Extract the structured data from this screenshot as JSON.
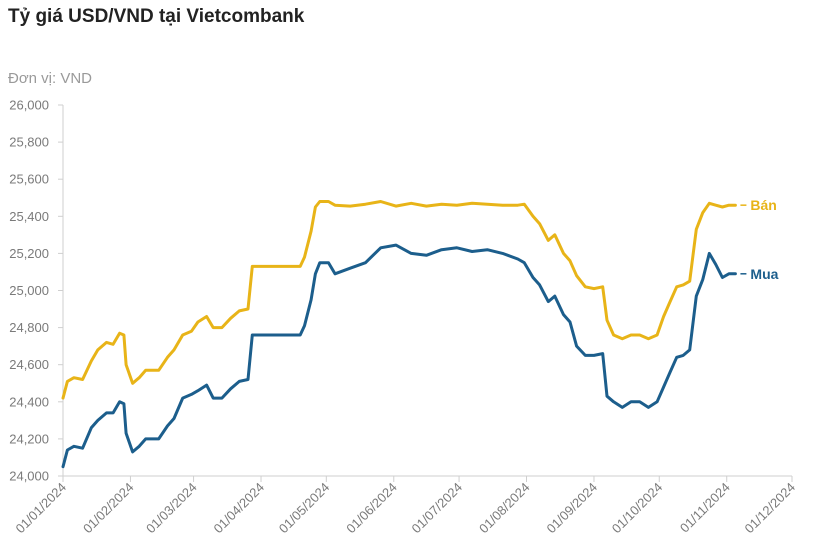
{
  "chart_data": {
    "type": "line",
    "title": "Tỷ giá USD/VND tại Vietcombank",
    "subtitle": "Đơn vị: VND",
    "ylim": [
      24000,
      26000
    ],
    "y_ticks": [
      24000,
      24200,
      24400,
      24600,
      24800,
      25000,
      25200,
      25400,
      25600,
      25800,
      26000
    ],
    "y_tick_labels": [
      "24,000",
      "24,200",
      "24,400",
      "24,600",
      "24,800",
      "25,000",
      "25,200",
      "25,400",
      "25,600",
      "25,800",
      "26,000"
    ],
    "x_tick_labels": [
      "01/01/2024",
      "01/02/2024",
      "01/03/2024",
      "01/04/2024",
      "01/05/2024",
      "01/06/2024",
      "01/07/2024",
      "01/08/2024",
      "01/09/2024",
      "01/10/2024",
      "01/11/2024",
      "01/12/2024"
    ],
    "grid": false,
    "series": [
      {
        "name": "Bán",
        "color": "#E8B418",
        "points": [
          [
            "01/01/2024",
            24420
          ],
          [
            "03/01/2024",
            24510
          ],
          [
            "06/01/2024",
            24530
          ],
          [
            "10/01/2024",
            24520
          ],
          [
            "14/01/2024",
            24620
          ],
          [
            "17/01/2024",
            24680
          ],
          [
            "21/01/2024",
            24720
          ],
          [
            "24/01/2024",
            24710
          ],
          [
            "27/01/2024",
            24770
          ],
          [
            "29/01/2024",
            24760
          ],
          [
            "30/01/2024",
            24600
          ],
          [
            "02/02/2024",
            24500
          ],
          [
            "05/02/2024",
            24530
          ],
          [
            "08/02/2024",
            24570
          ],
          [
            "14/02/2024",
            24570
          ],
          [
            "18/02/2024",
            24640
          ],
          [
            "21/02/2024",
            24680
          ],
          [
            "25/02/2024",
            24760
          ],
          [
            "29/02/2024",
            24780
          ],
          [
            "03/03/2024",
            24830
          ],
          [
            "07/03/2024",
            24860
          ],
          [
            "10/03/2024",
            24800
          ],
          [
            "14/03/2024",
            24800
          ],
          [
            "18/03/2024",
            24850
          ],
          [
            "22/03/2024",
            24890
          ],
          [
            "26/03/2024",
            24900
          ],
          [
            "28/03/2024",
            25130
          ],
          [
            "05/04/2024",
            25130
          ],
          [
            "12/04/2024",
            25130
          ],
          [
            "19/04/2024",
            25130
          ],
          [
            "21/04/2024",
            25180
          ],
          [
            "24/04/2024",
            25320
          ],
          [
            "26/04/2024",
            25450
          ],
          [
            "28/04/2024",
            25480
          ],
          [
            "02/05/2024",
            25480
          ],
          [
            "05/05/2024",
            25460
          ],
          [
            "12/05/2024",
            25455
          ],
          [
            "19/05/2024",
            25465
          ],
          [
            "26/05/2024",
            25480
          ],
          [
            "02/06/2024",
            25455
          ],
          [
            "09/06/2024",
            25470
          ],
          [
            "16/06/2024",
            25455
          ],
          [
            "23/06/2024",
            25465
          ],
          [
            "30/06/2024",
            25460
          ],
          [
            "07/07/2024",
            25470
          ],
          [
            "14/07/2024",
            25465
          ],
          [
            "21/07/2024",
            25460
          ],
          [
            "28/07/2024",
            25460
          ],
          [
            "31/07/2024",
            25465
          ],
          [
            "04/08/2024",
            25400
          ],
          [
            "07/08/2024",
            25360
          ],
          [
            "11/08/2024",
            25270
          ],
          [
            "14/08/2024",
            25300
          ],
          [
            "18/08/2024",
            25200
          ],
          [
            "21/08/2024",
            25160
          ],
          [
            "24/08/2024",
            25080
          ],
          [
            "28/08/2024",
            25020
          ],
          [
            "01/09/2024",
            25010
          ],
          [
            "05/09/2024",
            25020
          ],
          [
            "07/09/2024",
            24840
          ],
          [
            "10/09/2024",
            24760
          ],
          [
            "14/09/2024",
            24740
          ],
          [
            "18/09/2024",
            24760
          ],
          [
            "22/09/2024",
            24760
          ],
          [
            "26/09/2024",
            24740
          ],
          [
            "30/09/2024",
            24760
          ],
          [
            "03/10/2024",
            24860
          ],
          [
            "06/10/2024",
            24940
          ],
          [
            "09/10/2024",
            25020
          ],
          [
            "12/10/2024",
            25030
          ],
          [
            "15/10/2024",
            25050
          ],
          [
            "18/10/2024",
            25330
          ],
          [
            "21/10/2024",
            25420
          ],
          [
            "24/10/2024",
            25470
          ],
          [
            "27/10/2024",
            25460
          ],
          [
            "30/10/2024",
            25450
          ],
          [
            "02/11/2024",
            25460
          ],
          [
            "05/11/2024",
            25460
          ]
        ]
      },
      {
        "name": "Mua",
        "color": "#1C5E8C",
        "points": [
          [
            "01/01/2024",
            24050
          ],
          [
            "03/01/2024",
            24140
          ],
          [
            "06/01/2024",
            24160
          ],
          [
            "10/01/2024",
            24150
          ],
          [
            "14/01/2024",
            24260
          ],
          [
            "17/01/2024",
            24300
          ],
          [
            "21/01/2024",
            24340
          ],
          [
            "24/01/2024",
            24340
          ],
          [
            "27/01/2024",
            24400
          ],
          [
            "29/01/2024",
            24390
          ],
          [
            "30/01/2024",
            24230
          ],
          [
            "02/02/2024",
            24130
          ],
          [
            "05/02/2024",
            24160
          ],
          [
            "08/02/2024",
            24200
          ],
          [
            "14/02/2024",
            24200
          ],
          [
            "18/02/2024",
            24270
          ],
          [
            "21/02/2024",
            24310
          ],
          [
            "25/02/2024",
            24420
          ],
          [
            "29/02/2024",
            24440
          ],
          [
            "03/03/2024",
            24460
          ],
          [
            "07/03/2024",
            24490
          ],
          [
            "10/03/2024",
            24420
          ],
          [
            "14/03/2024",
            24420
          ],
          [
            "18/03/2024",
            24470
          ],
          [
            "22/03/2024",
            24510
          ],
          [
            "26/03/2024",
            24520
          ],
          [
            "28/03/2024",
            24760
          ],
          [
            "05/04/2024",
            24760
          ],
          [
            "12/04/2024",
            24760
          ],
          [
            "19/04/2024",
            24760
          ],
          [
            "21/04/2024",
            24810
          ],
          [
            "24/04/2024",
            24950
          ],
          [
            "26/04/2024",
            25090
          ],
          [
            "28/04/2024",
            25150
          ],
          [
            "02/05/2024",
            25150
          ],
          [
            "05/05/2024",
            25090
          ],
          [
            "12/05/2024",
            25120
          ],
          [
            "19/05/2024",
            25150
          ],
          [
            "26/05/2024",
            25230
          ],
          [
            "02/06/2024",
            25245
          ],
          [
            "09/06/2024",
            25200
          ],
          [
            "16/06/2024",
            25190
          ],
          [
            "23/06/2024",
            25220
          ],
          [
            "30/06/2024",
            25230
          ],
          [
            "07/07/2024",
            25210
          ],
          [
            "14/07/2024",
            25220
          ],
          [
            "21/07/2024",
            25200
          ],
          [
            "28/07/2024",
            25170
          ],
          [
            "31/07/2024",
            25150
          ],
          [
            "04/08/2024",
            25070
          ],
          [
            "07/08/2024",
            25030
          ],
          [
            "11/08/2024",
            24940
          ],
          [
            "14/08/2024",
            24970
          ],
          [
            "18/08/2024",
            24870
          ],
          [
            "21/08/2024",
            24830
          ],
          [
            "24/08/2024",
            24700
          ],
          [
            "28/08/2024",
            24650
          ],
          [
            "01/09/2024",
            24650
          ],
          [
            "05/09/2024",
            24660
          ],
          [
            "07/09/2024",
            24430
          ],
          [
            "10/09/2024",
            24400
          ],
          [
            "14/09/2024",
            24370
          ],
          [
            "18/09/2024",
            24400
          ],
          [
            "22/09/2024",
            24400
          ],
          [
            "26/09/2024",
            24370
          ],
          [
            "30/09/2024",
            24400
          ],
          [
            "03/10/2024",
            24480
          ],
          [
            "06/10/2024",
            24560
          ],
          [
            "09/10/2024",
            24640
          ],
          [
            "12/10/2024",
            24650
          ],
          [
            "15/10/2024",
            24680
          ],
          [
            "18/10/2024",
            24970
          ],
          [
            "21/10/2024",
            25060
          ],
          [
            "24/10/2024",
            25200
          ],
          [
            "27/10/2024",
            25140
          ],
          [
            "30/10/2024",
            25070
          ],
          [
            "02/11/2024",
            25090
          ],
          [
            "05/11/2024",
            25090
          ]
        ]
      }
    ]
  }
}
